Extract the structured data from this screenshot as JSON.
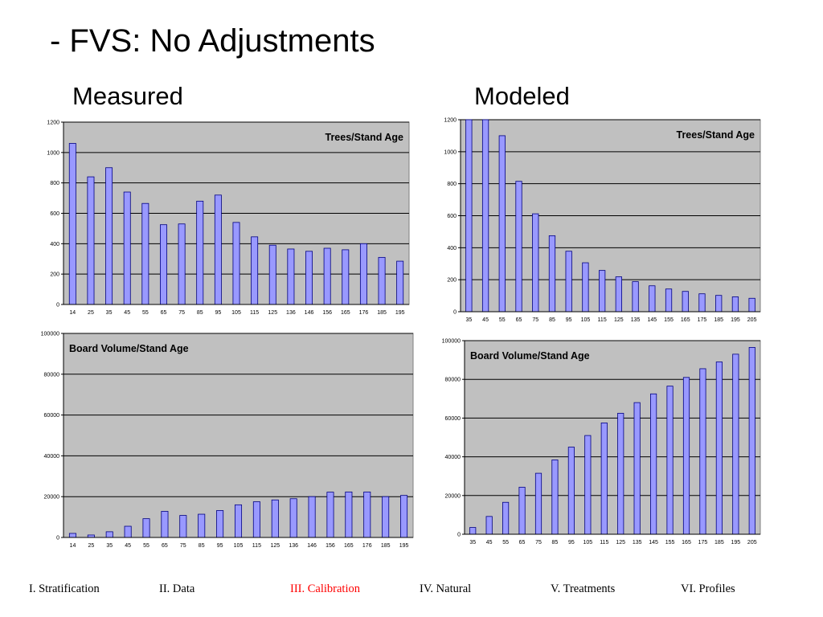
{
  "slide": {
    "title": "- FVS: No Adjustments",
    "left_heading": "Measured",
    "right_heading": "Modeled"
  },
  "colors": {
    "plot_background": "#c0c0c0",
    "bar_fill": "#9999ff",
    "bar_stroke": "#000080",
    "gridline": "#000000",
    "nav_active": "#ff0000",
    "nav_default": "#000000"
  },
  "nav": {
    "items": [
      {
        "label": "I. Stratification",
        "active": false
      },
      {
        "label": "II. Data",
        "active": false
      },
      {
        "label": "III. Calibration",
        "active": true
      },
      {
        "label": "IV. Natural",
        "active": false
      },
      {
        "label": "V. Treatments",
        "active": false
      },
      {
        "label": "VI. Profiles",
        "active": false
      }
    ]
  },
  "chart_data": [
    {
      "id": "measured-trees",
      "type": "bar",
      "title": "Trees/Stand Age",
      "title_placement": "top-right",
      "categories": [
        "14",
        "25",
        "35",
        "45",
        "55",
        "65",
        "75",
        "85",
        "95",
        "105",
        "115",
        "125",
        "136",
        "146",
        "156",
        "165",
        "176",
        "185",
        "195"
      ],
      "values": [
        1060,
        840,
        900,
        740,
        665,
        525,
        530,
        680,
        720,
        540,
        445,
        390,
        365,
        350,
        370,
        360,
        400,
        310,
        285
      ],
      "ylim": [
        0,
        1200
      ],
      "yticks": [
        0,
        200,
        400,
        600,
        800,
        1000,
        1200
      ],
      "grid": true
    },
    {
      "id": "modeled-trees",
      "type": "bar",
      "title": "Trees/Stand Age",
      "title_placement": "top-right",
      "categories": [
        "35",
        "45",
        "55",
        "65",
        "75",
        "85",
        "95",
        "105",
        "115",
        "125",
        "135",
        "145",
        "155",
        "165",
        "175",
        "185",
        "195",
        "205"
      ],
      "values": [
        1200,
        1200,
        1100,
        815,
        612,
        475,
        378,
        306,
        258,
        218,
        188,
        162,
        142,
        127,
        112,
        102,
        93,
        84
      ],
      "ylim": [
        0,
        1200
      ],
      "yticks": [
        0,
        200,
        400,
        600,
        800,
        1000,
        1200
      ],
      "grid": true
    },
    {
      "id": "measured-board",
      "type": "bar",
      "title": "Board Volume/Stand Age",
      "title_placement": "top-left",
      "categories": [
        "14",
        "25",
        "35",
        "45",
        "55",
        "65",
        "75",
        "85",
        "95",
        "105",
        "115",
        "125",
        "136",
        "146",
        "156",
        "165",
        "176",
        "185",
        "195"
      ],
      "values": [
        2000,
        1200,
        2800,
        5500,
        9200,
        12800,
        10800,
        11400,
        13200,
        16000,
        17500,
        18400,
        19000,
        20000,
        22200,
        22300,
        22300,
        20000,
        20600
      ],
      "ylim": [
        0,
        100000
      ],
      "yticks": [
        0,
        20000,
        40000,
        60000,
        80000,
        100000
      ],
      "grid": true
    },
    {
      "id": "modeled-board",
      "type": "bar",
      "title": "Board Volume/Stand Age",
      "title_placement": "top-left",
      "categories": [
        "35",
        "45",
        "55",
        "65",
        "75",
        "85",
        "95",
        "105",
        "115",
        "125",
        "135",
        "145",
        "155",
        "165",
        "175",
        "185",
        "195",
        "205"
      ],
      "values": [
        3500,
        9200,
        16500,
        24300,
        31500,
        38400,
        45000,
        51000,
        57500,
        62500,
        68000,
        72500,
        76500,
        81000,
        85500,
        89000,
        93000,
        96500
      ],
      "ylim": [
        0,
        100000
      ],
      "yticks": [
        0,
        20000,
        40000,
        60000,
        80000,
        100000
      ],
      "grid": true
    }
  ]
}
